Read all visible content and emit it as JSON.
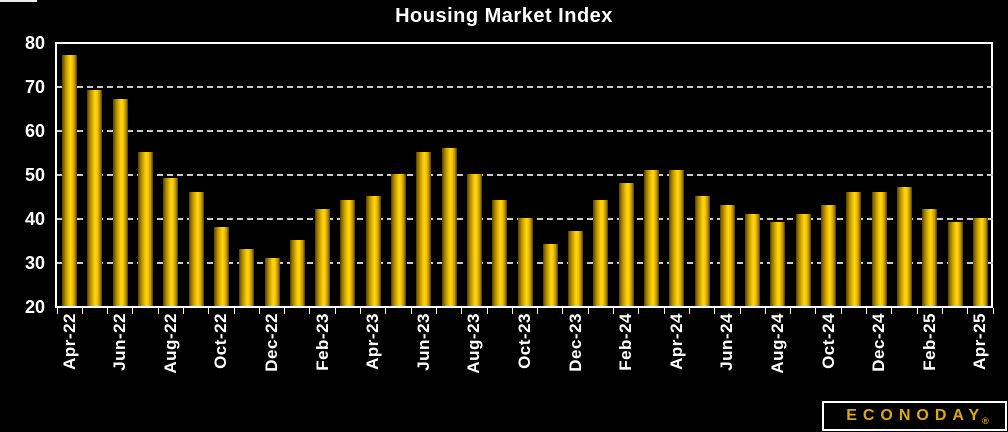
{
  "title": "Housing Market Index",
  "logo": {
    "text": "ECONODAY",
    "registered_mark": "®"
  },
  "colors": {
    "background": "#000000",
    "plot_border": "#ffffff",
    "gridline": "#c9c9c9",
    "axis_text": "#ffffff",
    "title_text": "#ffffff",
    "bar_gold_bright": "#ffd60e",
    "bar_gold_mid": "#b68e00",
    "bar_gold_dark": "#4a3a00",
    "logo_gold": "#dfa900"
  },
  "chart_data": {
    "type": "bar",
    "title": "Housing Market Index",
    "categories": [
      "Apr-22",
      "May-22",
      "Jun-22",
      "Jul-22",
      "Aug-22",
      "Sep-22",
      "Oct-22",
      "Nov-22",
      "Dec-22",
      "Jan-23",
      "Feb-23",
      "Mar-23",
      "Apr-23",
      "May-23",
      "Jun-23",
      "Jul-23",
      "Aug-23",
      "Sep-23",
      "Oct-23",
      "Nov-23",
      "Dec-23",
      "Jan-24",
      "Feb-24",
      "Mar-24",
      "Apr-24",
      "May-24",
      "Jun-24",
      "Jul-24",
      "Aug-24",
      "Sep-24",
      "Oct-24",
      "Nov-24",
      "Dec-24",
      "Jan-25",
      "Feb-25",
      "Mar-25",
      "Apr-25"
    ],
    "values": [
      77,
      69,
      67,
      55,
      49,
      46,
      38,
      33,
      31,
      35,
      42,
      44,
      45,
      50,
      55,
      56,
      50,
      44,
      40,
      34,
      37,
      44,
      48,
      51,
      51,
      45,
      43,
      41,
      39,
      41,
      43,
      46,
      46,
      47,
      42,
      39,
      40
    ],
    "xlabel": "",
    "ylabel": "",
    "ylim": [
      20,
      80
    ],
    "yticks": [
      80,
      70,
      60,
      50,
      40,
      30,
      20
    ],
    "gridlines_at": [
      70,
      60,
      50,
      40,
      30
    ],
    "x_labels_shown": [
      "Apr-22",
      "Jun-22",
      "Aug-22",
      "Oct-22",
      "Dec-22",
      "Feb-23",
      "Apr-23",
      "Jun-23",
      "Aug-23",
      "Oct-23",
      "Dec-23",
      "Feb-24",
      "Apr-24",
      "Jun-24",
      "Aug-24",
      "Oct-24",
      "Dec-24",
      "Feb-25",
      "Apr-25"
    ],
    "x_label_rotation_deg": 90,
    "grid": "horizontal-dashed",
    "legend": "none"
  }
}
